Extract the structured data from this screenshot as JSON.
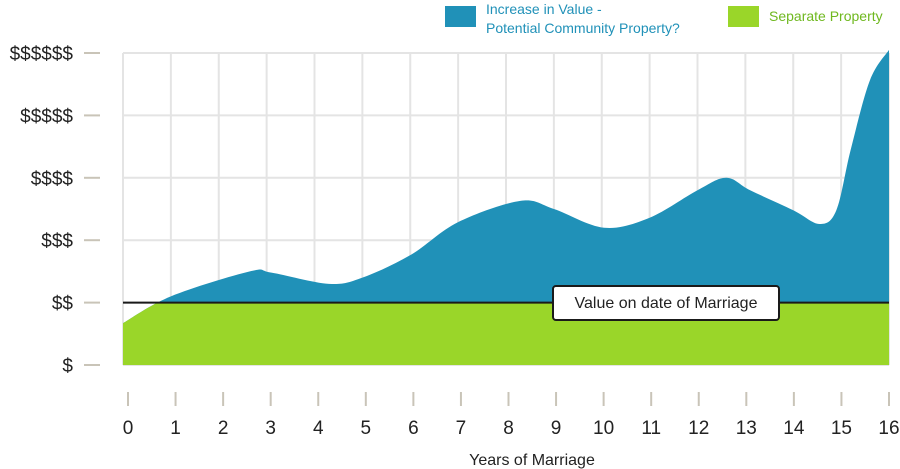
{
  "colors": {
    "increase": "#2091b8",
    "separate": "#9ad629",
    "grid": "#e4e4e4",
    "tick": "#c9c4b8",
    "text": "#222222",
    "marriage_line": "#1a1a1a"
  },
  "legend": [
    {
      "label_line1": "Increase in Value -",
      "label_line2": "Potential Community Property?",
      "color": "#2091b8"
    },
    {
      "label_line1": "Separate Property",
      "label_line2": "",
      "color": "#9ad629"
    }
  ],
  "chart_data": {
    "type": "area",
    "xlabel": "Years of Marriage",
    "ylabel": "",
    "x_ticks": [
      "0",
      "1",
      "2",
      "3",
      "4",
      "5",
      "6",
      "7",
      "8",
      "9",
      "10",
      "11",
      "12",
      "13",
      "14",
      "15",
      "16"
    ],
    "y_ticks": [
      "$",
      "$$",
      "$$$",
      "$$$$",
      "$$$$$",
      "$$$$$$"
    ],
    "xlim": [
      0,
      16
    ],
    "ylim": [
      1,
      6
    ],
    "grid": true,
    "legend_position": "top-right",
    "series": [
      {
        "name": "Increase in Value - Potential Community Property?",
        "x": [
          0,
          1,
          2.65,
          3.1,
          4.3,
          5,
          6,
          7,
          8.3,
          9,
          10.05,
          11,
          12,
          12.6,
          13.1,
          14,
          14.55,
          14.9,
          15.2,
          15.6,
          16
        ],
        "y": [
          1.67,
          2.1,
          2.5,
          2.48,
          2.3,
          2.4,
          2.76,
          3.29,
          3.63,
          3.5,
          3.2,
          3.36,
          3.8,
          4.0,
          3.8,
          3.48,
          3.26,
          3.48,
          4.45,
          5.56,
          6.05
        ]
      },
      {
        "name": "Separate Property",
        "value_on_date_of_marriage": 2
      }
    ],
    "annotations": [
      {
        "text": "Value on date of Marriage",
        "y": 2
      }
    ]
  }
}
